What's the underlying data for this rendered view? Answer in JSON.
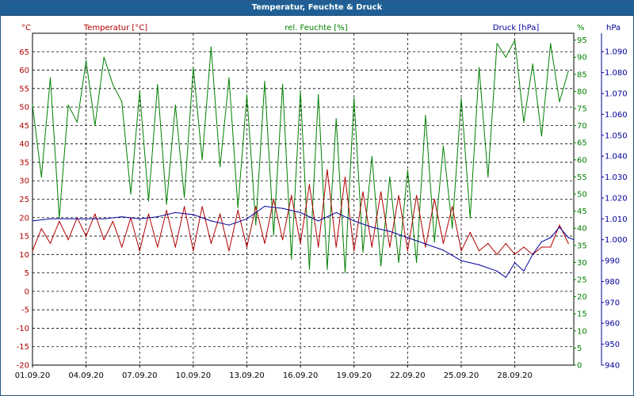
{
  "window": {
    "title": "Temperatur, Feuchte & Druck"
  },
  "chart_data": {
    "type": "line",
    "title": "Temperatur, Feuchte & Druck",
    "grid": true,
    "x_ticks": [
      "01.09.20",
      "04.09.20",
      "07.09.20",
      "10.09.20",
      "13.09.20",
      "16.09.20",
      "19.09.20",
      "22.09.20",
      "25.09.20",
      "28.09.20"
    ],
    "x_range_days": [
      0,
      30.3
    ],
    "axes": {
      "temperature": {
        "label": "Temperatur [°C]",
        "unit": "°C",
        "side": "left",
        "color": "#b00000",
        "range": [
          -20,
          70
        ],
        "ticks": [
          -20,
          -15,
          -10,
          -5,
          0,
          5,
          10,
          15,
          20,
          25,
          30,
          35,
          40,
          45,
          50,
          55,
          60,
          65
        ]
      },
      "humidity": {
        "label": "rel. Feuchte [%]",
        "unit": "%",
        "side": "right-inner",
        "color": "#008000",
        "range": [
          0,
          97
        ],
        "ticks": [
          0,
          5,
          10,
          15,
          20,
          25,
          30,
          35,
          40,
          45,
          50,
          55,
          60,
          65,
          70,
          75,
          80,
          85,
          90,
          95
        ]
      },
      "pressure": {
        "label": "Druck [hPa]",
        "unit": "hPa",
        "side": "right-outer",
        "color": "#000099",
        "range": [
          0.94,
          1.0988
        ],
        "ticks": [
          "940",
          "950",
          "960",
          "970",
          "980",
          "990",
          "1.000",
          "1.010",
          "1.020",
          "1.030",
          "1.040",
          "1.050",
          "1.060",
          "1.070",
          "1.080",
          "1.090"
        ]
      }
    },
    "series": [
      {
        "name": "Temperatur [°C]",
        "axis": "temperature",
        "color": "#b00000",
        "points": [
          [
            0.0,
            11
          ],
          [
            0.5,
            17
          ],
          [
            1.0,
            13
          ],
          [
            1.5,
            19
          ],
          [
            2.0,
            14
          ],
          [
            2.5,
            20
          ],
          [
            3.0,
            15
          ],
          [
            3.5,
            21
          ],
          [
            4.0,
            14
          ],
          [
            4.5,
            19
          ],
          [
            5.0,
            12
          ],
          [
            5.5,
            20
          ],
          [
            6.0,
            11
          ],
          [
            6.5,
            21
          ],
          [
            7.0,
            12
          ],
          [
            7.5,
            22
          ],
          [
            8.0,
            12
          ],
          [
            8.5,
            23
          ],
          [
            9.0,
            11
          ],
          [
            9.5,
            23
          ],
          [
            10.0,
            13
          ],
          [
            10.5,
            21
          ],
          [
            11.0,
            11
          ],
          [
            11.5,
            22
          ],
          [
            12.0,
            12
          ],
          [
            12.5,
            23
          ],
          [
            13.0,
            13
          ],
          [
            13.5,
            25
          ],
          [
            14.0,
            14
          ],
          [
            14.5,
            26
          ],
          [
            15.0,
            13
          ],
          [
            15.5,
            29
          ],
          [
            16.0,
            12
          ],
          [
            16.5,
            33
          ],
          [
            17.0,
            12
          ],
          [
            17.5,
            31
          ],
          [
            18.0,
            11
          ],
          [
            18.5,
            27
          ],
          [
            19.0,
            12
          ],
          [
            19.5,
            27
          ],
          [
            20.0,
            12
          ],
          [
            20.5,
            26
          ],
          [
            21.0,
            11
          ],
          [
            21.5,
            26
          ],
          [
            22.0,
            12
          ],
          [
            22.5,
            25
          ],
          [
            23.0,
            13
          ],
          [
            23.5,
            23
          ],
          [
            24.0,
            11
          ],
          [
            24.5,
            16
          ],
          [
            25.0,
            11
          ],
          [
            25.5,
            13
          ],
          [
            26.0,
            10
          ],
          [
            26.5,
            13
          ],
          [
            27.0,
            10
          ],
          [
            27.5,
            12
          ],
          [
            28.0,
            10
          ],
          [
            28.5,
            12
          ],
          [
            29.0,
            12
          ],
          [
            29.5,
            18
          ],
          [
            30.0,
            13
          ]
        ]
      },
      {
        "name": "rel. Feuchte [%]",
        "axis": "humidity",
        "color": "#008000",
        "points": [
          [
            0.0,
            76
          ],
          [
            0.5,
            55
          ],
          [
            1.0,
            84
          ],
          [
            1.5,
            43
          ],
          [
            2.0,
            76
          ],
          [
            2.5,
            71
          ],
          [
            3.0,
            89
          ],
          [
            3.5,
            70
          ],
          [
            4.0,
            90
          ],
          [
            4.5,
            82
          ],
          [
            5.0,
            77
          ],
          [
            5.5,
            50
          ],
          [
            6.0,
            80
          ],
          [
            6.5,
            48
          ],
          [
            7.0,
            82
          ],
          [
            7.5,
            47
          ],
          [
            8.0,
            76
          ],
          [
            8.5,
            49
          ],
          [
            9.0,
            87
          ],
          [
            9.5,
            60
          ],
          [
            10.0,
            93
          ],
          [
            10.5,
            58
          ],
          [
            11.0,
            84
          ],
          [
            11.5,
            46
          ],
          [
            12.0,
            79
          ],
          [
            12.5,
            41
          ],
          [
            13.0,
            83
          ],
          [
            13.5,
            38
          ],
          [
            14.0,
            82
          ],
          [
            14.5,
            31
          ],
          [
            15.0,
            80
          ],
          [
            15.5,
            28
          ],
          [
            16.0,
            79
          ],
          [
            16.5,
            28
          ],
          [
            17.0,
            72
          ],
          [
            17.5,
            27
          ],
          [
            18.0,
            78
          ],
          [
            18.5,
            33
          ],
          [
            19.0,
            61
          ],
          [
            19.5,
            29
          ],
          [
            20.0,
            55
          ],
          [
            20.5,
            30
          ],
          [
            21.0,
            57
          ],
          [
            21.5,
            30
          ],
          [
            22.0,
            73
          ],
          [
            22.5,
            36
          ],
          [
            23.0,
            64
          ],
          [
            23.5,
            40
          ],
          [
            24.0,
            78
          ],
          [
            24.5,
            43
          ],
          [
            25.0,
            87
          ],
          [
            25.5,
            55
          ],
          [
            26.0,
            94
          ],
          [
            26.5,
            90
          ],
          [
            27.0,
            95
          ],
          [
            27.5,
            71
          ],
          [
            28.0,
            88
          ],
          [
            28.5,
            67
          ],
          [
            29.0,
            94
          ],
          [
            29.5,
            77
          ],
          [
            30.0,
            86
          ]
        ]
      },
      {
        "name": "Druck [hPa]",
        "axis": "pressure",
        "color": "#000099",
        "points": [
          [
            0.0,
            1.009
          ],
          [
            1.0,
            1.01
          ],
          [
            2.0,
            1.01
          ],
          [
            3.0,
            1.01
          ],
          [
            4.0,
            1.01
          ],
          [
            5.0,
            1.011
          ],
          [
            6.0,
            1.01
          ],
          [
            7.0,
            1.011
          ],
          [
            8.0,
            1.013
          ],
          [
            9.0,
            1.012
          ],
          [
            10.0,
            1.009
          ],
          [
            11.0,
            1.007
          ],
          [
            12.0,
            1.01
          ],
          [
            13.0,
            1.016
          ],
          [
            14.0,
            1.015
          ],
          [
            15.0,
            1.013
          ],
          [
            16.0,
            1.009
          ],
          [
            17.0,
            1.013
          ],
          [
            18.0,
            1.009
          ],
          [
            19.0,
            1.006
          ],
          [
            20.0,
            1.004
          ],
          [
            21.0,
            1.001
          ],
          [
            22.0,
            0.998
          ],
          [
            23.0,
            0.995
          ],
          [
            24.0,
            0.99
          ],
          [
            25.0,
            0.988
          ],
          [
            26.0,
            0.985
          ],
          [
            26.5,
            0.982
          ],
          [
            27.0,
            0.989
          ],
          [
            27.5,
            0.985
          ],
          [
            28.0,
            0.993
          ],
          [
            28.5,
            0.999
          ],
          [
            29.0,
            1.001
          ],
          [
            29.5,
            1.006
          ],
          [
            30.0,
            1.001
          ],
          [
            30.3,
            1.0
          ]
        ]
      }
    ]
  }
}
